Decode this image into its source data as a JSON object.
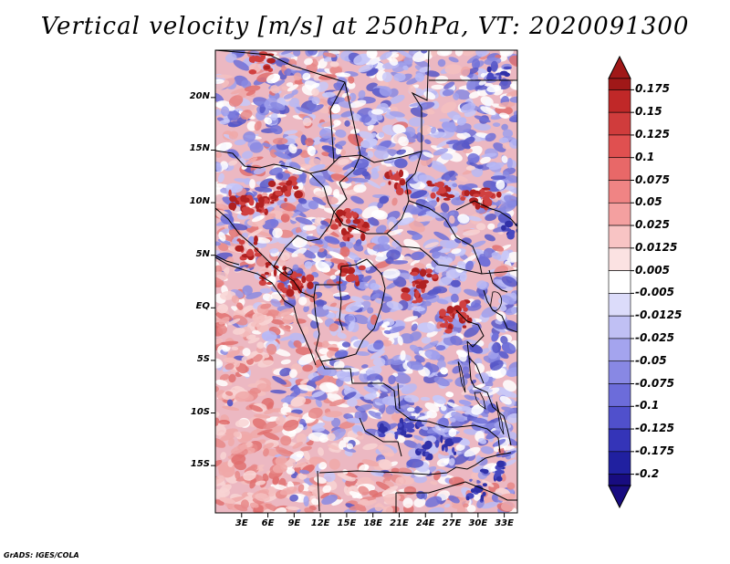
{
  "title": "Vertical velocity [m/s] at 250hPa, VT: 2020091300",
  "footer": "GrADS: IGES/COLA",
  "map": {
    "lat_labels": [
      "20N",
      "15N",
      "10N",
      "5N",
      "EQ",
      "5S",
      "10S",
      "15S"
    ],
    "lat_values": [
      20,
      15,
      10,
      5,
      0,
      -5,
      -10,
      -15
    ],
    "lon_labels": [
      "3E",
      "6E",
      "9E",
      "12E",
      "15E",
      "18E",
      "21E",
      "24E",
      "27E",
      "30E",
      "33E"
    ],
    "lon_values": [
      3,
      6,
      9,
      12,
      15,
      18,
      21,
      24,
      27,
      30,
      33
    ],
    "lon_range": [
      0,
      34.5
    ],
    "lat_range": [
      -19.5,
      24.5
    ]
  },
  "colorbar": {
    "levels": [
      "0.175",
      "0.15",
      "0.125",
      "0.1",
      "0.075",
      "0.05",
      "0.025",
      "0.0125",
      "0.005",
      "-0.005",
      "-0.0125",
      "-0.025",
      "-0.05",
      "-0.075",
      "-0.1",
      "-0.125",
      "-0.175",
      "-0.2"
    ],
    "colors": [
      "#a01818",
      "#c02828",
      "#d03c3c",
      "#e05050",
      "#e86868",
      "#f08484",
      "#f4a0a0",
      "#f8c4c4",
      "#fbe2e2",
      "#ffffff",
      "#dcdcfa",
      "#c0c0f4",
      "#a4a4ee",
      "#8888e4",
      "#6c6cda",
      "#5050cc",
      "#3434b8",
      "#2020a0",
      "#180c80"
    ],
    "top_color": "#a01818",
    "bottom_color": "#180c80"
  }
}
